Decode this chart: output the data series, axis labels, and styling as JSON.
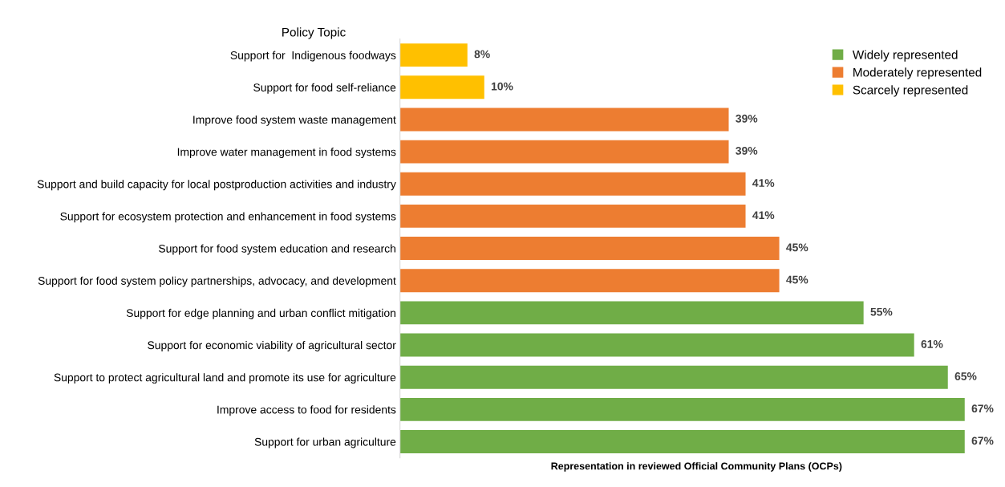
{
  "chart_data": {
    "type": "bar",
    "orientation": "horizontal",
    "ylabel": "Policy Topic",
    "xlabel": "Representation in reviewed Official Community Plans (OCPs)",
    "categories": [
      "Support for  Indigenous foodways",
      "Support for food self-reliance",
      "Improve food system waste management",
      "Improve water management in food systems",
      "Support and build capacity for local postproduction activities and industry",
      "Support for ecosystem protection and enhancement in food systems",
      "Support for food system education and research",
      "Support for food system policy partnerships, advocacy, and development",
      "Support for edge planning and urban conflict mitigation",
      "Support for economic viability of agricultural sector",
      "Support to protect agricultural land and promote its use for agriculture",
      "Improve access to food for residents",
      "Support for urban agriculture"
    ],
    "series": [
      {
        "name": "Widely represented",
        "color": "#70ad47",
        "values": [
          null,
          null,
          null,
          null,
          null,
          null,
          null,
          null,
          55,
          61,
          65,
          67,
          67
        ],
        "value_labels": [
          null,
          null,
          null,
          null,
          null,
          null,
          null,
          null,
          "55%",
          "61%",
          "65%",
          "67%",
          "67%"
        ]
      },
      {
        "name": "Moderately represented",
        "color": "#ed7d31",
        "values": [
          null,
          null,
          39,
          39,
          41,
          41,
          45,
          45,
          null,
          null,
          null,
          null,
          null
        ],
        "value_labels": [
          null,
          null,
          "39%",
          "39%",
          "41%",
          "41%",
          "45%",
          "45%",
          null,
          null,
          null,
          null,
          null
        ]
      },
      {
        "name": "Scarcely represented",
        "color": "#ffc000",
        "values": [
          8,
          10,
          null,
          null,
          null,
          null,
          null,
          null,
          null,
          null,
          null,
          null,
          null
        ],
        "value_labels": [
          "8%",
          "10%",
          null,
          null,
          null,
          null,
          null,
          null,
          null,
          null,
          null,
          null,
          null
        ]
      }
    ],
    "tick_labels": "y",
    "grid": false,
    "legend": "top right"
  }
}
